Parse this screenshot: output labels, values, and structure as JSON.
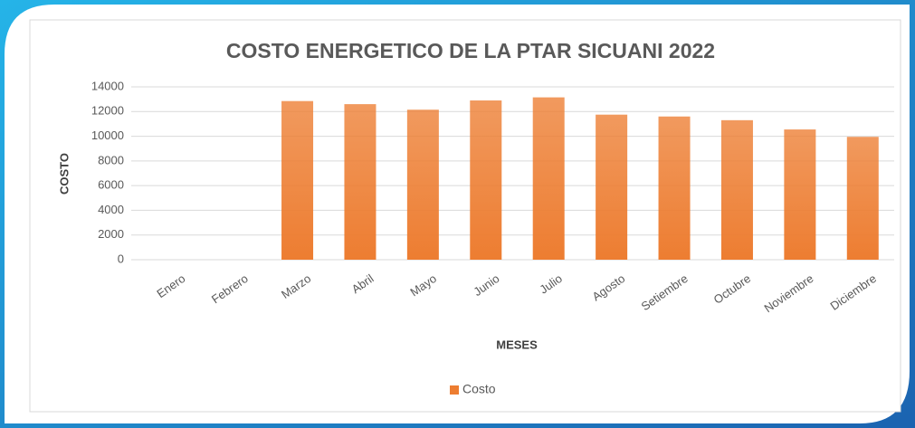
{
  "chart_data": {
    "type": "bar",
    "title": "COSTO ENERGETICO DE LA PTAR SICUANI 2022",
    "x_label": "MESES",
    "y_label": "COSTO",
    "categories": [
      "Enero",
      "Febrero",
      "Marzo",
      "Abril",
      "Mayo",
      "Junio",
      "Julio",
      "Agosto",
      "Setiembre",
      "Octubre",
      "Noviembre",
      "Diciembre"
    ],
    "series": [
      {
        "name": "Costo",
        "color": "#ed7d31",
        "values": [
          0,
          0,
          12850,
          12600,
          12150,
          12900,
          13150,
          11750,
          11600,
          11300,
          10550,
          9950
        ]
      }
    ],
    "ylim": [
      0,
      14000
    ],
    "yticks": [
      0,
      2000,
      4000,
      6000,
      8000,
      10000,
      12000,
      14000
    ],
    "grid": true,
    "legend": "bottom"
  }
}
